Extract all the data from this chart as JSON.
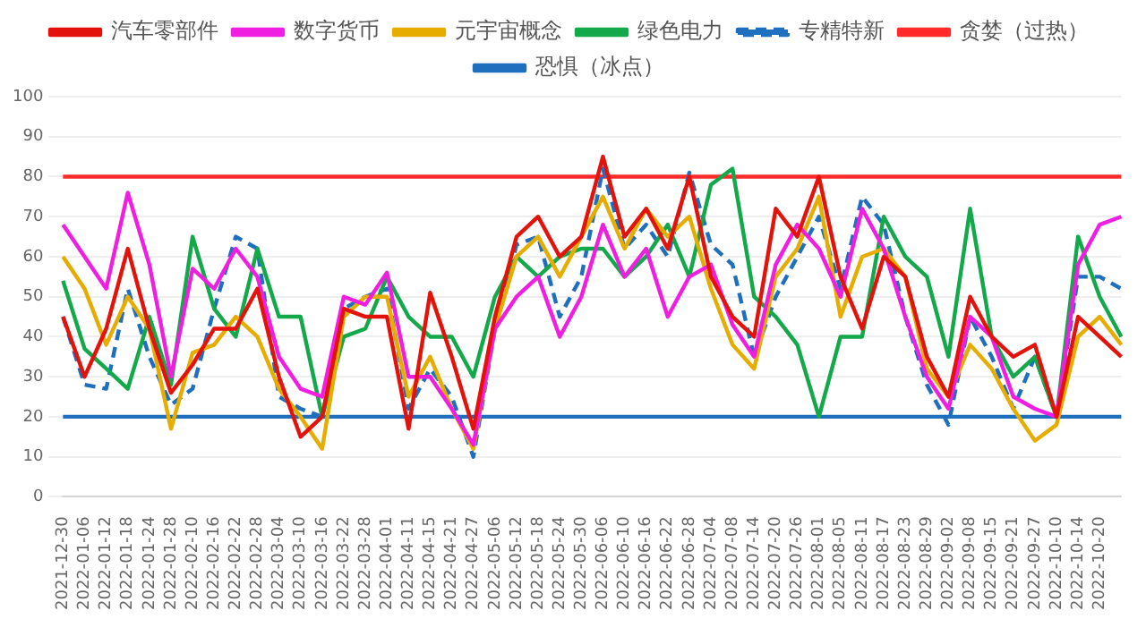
{
  "chart_data": {
    "type": "line",
    "categories": [
      "2021-12-30",
      "2022-01-06",
      "2022-01-12",
      "2022-01-18",
      "2022-01-24",
      "2022-01-28",
      "2022-02-10",
      "2022-02-16",
      "2022-02-22",
      "2022-02-28",
      "2022-03-04",
      "2022-03-10",
      "2022-03-16",
      "2022-03-22",
      "2022-03-28",
      "2022-04-01",
      "2022-04-11",
      "2022-04-15",
      "2022-04-21",
      "2022-04-27",
      "2022-05-06",
      "2022-05-12",
      "2022-05-18",
      "2022-05-24",
      "2022-05-30",
      "2022-06-06",
      "2022-06-10",
      "2022-06-16",
      "2022-06-22",
      "2022-06-28",
      "2022-07-04",
      "2022-07-08",
      "2022-07-14",
      "2022-07-20",
      "2022-07-26",
      "2022-08-01",
      "2022-08-05",
      "2022-08-11",
      "2022-08-17",
      "2022-08-23",
      "2022-08-29",
      "2022-09-02",
      "2022-09-08",
      "2022-09-15",
      "2022-09-21",
      "2022-09-27",
      "2022-10-10",
      "2022-10-14",
      "2022-10-20",
      null
    ],
    "series": [
      {
        "name": "汽车零部件",
        "color": "#e3120b",
        "values": [
          45,
          30,
          42,
          62,
          42,
          26,
          33,
          42,
          42,
          52,
          30,
          15,
          20,
          47,
          45,
          45,
          17,
          51,
          35,
          17,
          45,
          65,
          70,
          60,
          65,
          85,
          65,
          72,
          62,
          80,
          55,
          45,
          40,
          72,
          65,
          80,
          55,
          42,
          60,
          55,
          35,
          25,
          50,
          40,
          35,
          38,
          20,
          45,
          40,
          35
        ]
      },
      {
        "name": "数字货币",
        "color": "#f01ee0",
        "values": [
          68,
          60,
          52,
          76,
          58,
          30,
          57,
          52,
          62,
          55,
          35,
          27,
          25,
          50,
          48,
          56,
          30,
          30,
          22,
          13,
          42,
          50,
          55,
          40,
          50,
          68,
          55,
          62,
          45,
          55,
          58,
          43,
          35,
          58,
          68,
          62,
          50,
          72,
          62,
          45,
          30,
          22,
          45,
          40,
          25,
          22,
          20,
          58,
          68,
          70
        ]
      },
      {
        "name": "元宇宙概念",
        "color": "#e6ac00",
        "values": [
          60,
          52,
          38,
          50,
          42,
          17,
          36,
          38,
          45,
          40,
          27,
          20,
          12,
          45,
          50,
          50,
          25,
          35,
          22,
          12,
          42,
          60,
          65,
          55,
          65,
          75,
          62,
          72,
          65,
          70,
          52,
          38,
          32,
          55,
          62,
          75,
          45,
          60,
          62,
          55,
          32,
          25,
          38,
          32,
          22,
          14,
          18,
          40,
          45,
          38
        ]
      },
      {
        "name": "绿色电力",
        "color": "#13a84a",
        "values": [
          54,
          37,
          32,
          27,
          45,
          28,
          65,
          47,
          40,
          62,
          45,
          45,
          20,
          40,
          42,
          55,
          45,
          40,
          40,
          30,
          50,
          60,
          55,
          60,
          62,
          62,
          55,
          60,
          68,
          55,
          78,
          82,
          50,
          45,
          38,
          20,
          40,
          40,
          70,
          60,
          55,
          35,
          72,
          40,
          30,
          35,
          20,
          65,
          50,
          40
        ]
      },
      {
        "name": "专精特新",
        "color": "#1f6fbf",
        "line_style": "dashed",
        "values": [
          45,
          28,
          27,
          52,
          35,
          23,
          27,
          47,
          65,
          62,
          25,
          22,
          20,
          47,
          50,
          52,
          22,
          32,
          25,
          10,
          42,
          63,
          65,
          45,
          55,
          82,
          62,
          68,
          60,
          81,
          63,
          58,
          35,
          50,
          60,
          70,
          52,
          75,
          68,
          45,
          28,
          18,
          45,
          35,
          22,
          35,
          20,
          55,
          55,
          52
        ]
      },
      {
        "name": "贪婪（过热）",
        "color": "#ff2a2a",
        "values": [
          80,
          80,
          80,
          80,
          80,
          80,
          80,
          80,
          80,
          80,
          80,
          80,
          80,
          80,
          80,
          80,
          80,
          80,
          80,
          80,
          80,
          80,
          80,
          80,
          80,
          80,
          80,
          80,
          80,
          80,
          80,
          80,
          80,
          80,
          80,
          80,
          80,
          80,
          80,
          80,
          80,
          80,
          80,
          80,
          80,
          80,
          80,
          80,
          80,
          80
        ]
      },
      {
        "name": "恐惧（冰点）",
        "color": "#1f6fbf",
        "values": [
          20,
          20,
          20,
          20,
          20,
          20,
          20,
          20,
          20,
          20,
          20,
          20,
          20,
          20,
          20,
          20,
          20,
          20,
          20,
          20,
          20,
          20,
          20,
          20,
          20,
          20,
          20,
          20,
          20,
          20,
          20,
          20,
          20,
          20,
          20,
          20,
          20,
          20,
          20,
          20,
          20,
          20,
          20,
          20,
          20,
          20,
          20,
          20,
          20,
          20
        ]
      }
    ],
    "ylim": [
      0,
      100
    ],
    "yticks": [
      0,
      10,
      20,
      30,
      40,
      50,
      60,
      70,
      80,
      90,
      100
    ],
    "grid": "y",
    "legend": "top",
    "marker": "none"
  }
}
